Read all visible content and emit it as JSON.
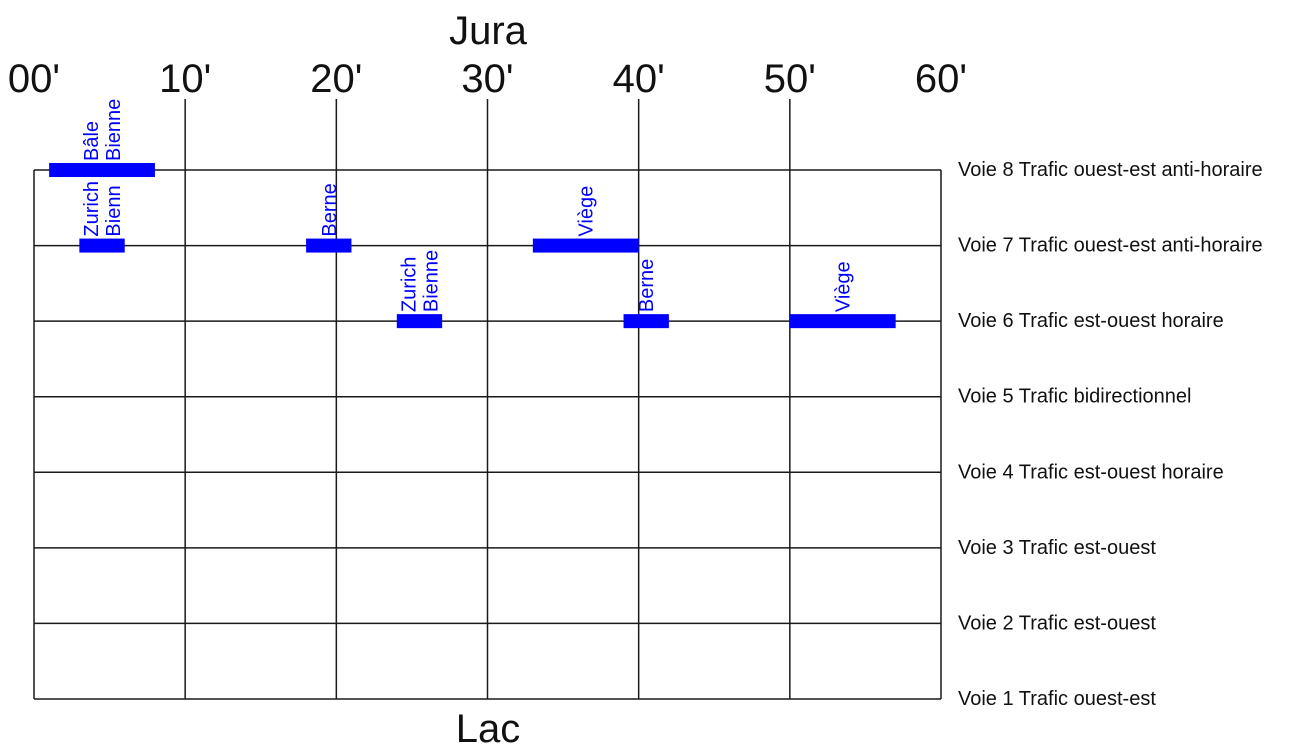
{
  "top_label": "Jura",
  "bottom_label": "Lac",
  "accent_color": "#0000ff",
  "minute_ticks": [
    "00'",
    "10'",
    "20'",
    "30'",
    "40'",
    "50'",
    "60'"
  ],
  "tracks": [
    {
      "number": 8,
      "label": "Voie 8 Trafic ouest-est anti-horaire"
    },
    {
      "number": 7,
      "label": "Voie 7 Trafic ouest-est anti-horaire"
    },
    {
      "number": 6,
      "label": "Voie 6 Trafic est-ouest horaire"
    },
    {
      "number": 5,
      "label": "Voie 5 Trafic bidirectionnel"
    },
    {
      "number": 4,
      "label": "Voie 4 Trafic est-ouest horaire"
    },
    {
      "number": 3,
      "label": "Voie 3 Trafic est-ouest"
    },
    {
      "number": 2,
      "label": "Voie 2 Trafic est-ouest"
    },
    {
      "number": 1,
      "label": "Voie 1 Trafic ouest-est"
    }
  ],
  "occupations": [
    {
      "track": 8,
      "start": 1,
      "end": 8,
      "labels": [
        "Bâle",
        "Bienne"
      ]
    },
    {
      "track": 7,
      "start": 3,
      "end": 6,
      "labels": [
        "Zurich",
        "Bienn"
      ]
    },
    {
      "track": 7,
      "start": 18,
      "end": 21,
      "labels": [
        "Berne"
      ]
    },
    {
      "track": 7,
      "start": 33,
      "end": 40,
      "labels": [
        "Viège"
      ]
    },
    {
      "track": 6,
      "start": 24,
      "end": 27,
      "labels": [
        "Zurich",
        "Bienne"
      ]
    },
    {
      "track": 6,
      "start": 39,
      "end": 42,
      "labels": [
        "Berne"
      ]
    },
    {
      "track": 6,
      "start": 50,
      "end": 57,
      "labels": [
        "Viège"
      ]
    }
  ]
}
